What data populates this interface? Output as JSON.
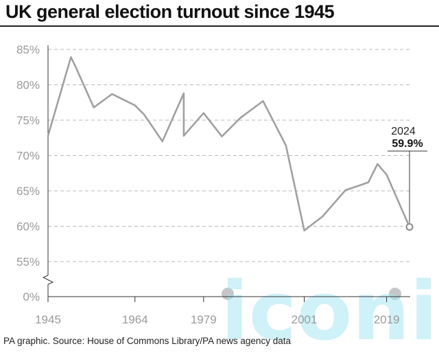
{
  "title": "UK general election turnout since 1945",
  "source": "PA graphic. Source: House of Commons Library/PA news agency data",
  "watermark": "iconic",
  "chart_data": {
    "type": "line",
    "title": "UK general election turnout since 1945",
    "xlabel": "",
    "ylabel": "",
    "x_ticks": [
      1945,
      1964,
      1979,
      2001,
      2019
    ],
    "y_ticks": [
      "85%",
      "80%",
      "75%",
      "70%",
      "65%",
      "60%",
      "55%",
      "0%"
    ],
    "y_break": "axis broken between 0% and 55%",
    "ylim": [
      0,
      85
    ],
    "grid": "horizontal dashed",
    "colors": {
      "line": "#a0a0a0",
      "grid": "#b8b8b8",
      "axis": "#333333"
    },
    "x": [
      1945,
      1950,
      1951,
      1955,
      1959,
      1964,
      1966,
      1970,
      "1974 Feb",
      "1974 Oct",
      1979,
      1983,
      1987,
      1992,
      1997,
      2001,
      2005,
      2010,
      2015,
      2017,
      2019,
      2024
    ],
    "values": [
      72.8,
      83.9,
      82.6,
      76.8,
      78.7,
      77.1,
      75.8,
      72.0,
      78.8,
      72.8,
      76.0,
      72.7,
      75.3,
      77.7,
      71.4,
      59.4,
      61.4,
      65.1,
      66.2,
      68.8,
      67.3,
      59.9
    ],
    "annotation": {
      "year": "2024",
      "value": "59.9%"
    }
  }
}
